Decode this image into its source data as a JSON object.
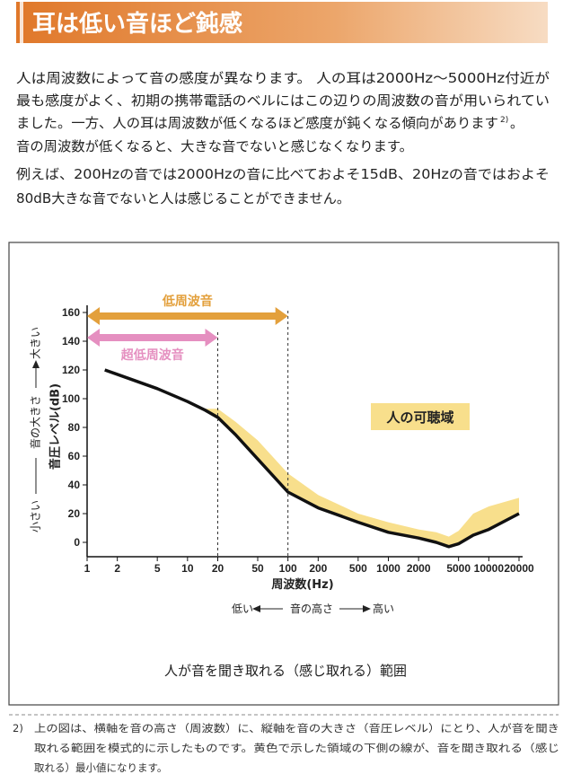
{
  "header": {
    "title": "耳は低い音ほど鈍感"
  },
  "paragraph": [
    {
      "text": "人は周波数によって音の感度が異なります。 人の耳は2000Hz～5000Hz付近が"
    },
    {
      "text": "最も感度がよく、初期の携帯電話のベルにはこの辺りの周波数の音が用いられてい"
    },
    {
      "text": "ました。一方、人の耳は周波数が低くなるほど感度が鈍くなる傾向があります",
      "sup": "2)",
      "tail": "。"
    },
    {
      "text": "音の周波数が低くなると、大きな音でないと感じなくなります。"
    },
    {
      "text": "例えば、200Hzの音では2000Hzの音に比べておよそ15dB、20Hzの音ではおよそ"
    },
    {
      "text": "80dB大きな音でないと人は感じることができません。"
    }
  ],
  "chart_data": {
    "type": "line",
    "caption": "人が音を聞き取れる（感じ取れる）範囲",
    "x_label": "周波数(Hz)",
    "y_label": "音圧レベル(dB)",
    "xscale": "log",
    "xlim": [
      1,
      20000
    ],
    "xticks": [
      1,
      2,
      5,
      10,
      20,
      50,
      100,
      200,
      500,
      1000,
      2000,
      5000,
      10000,
      20000
    ],
    "ylim": [
      -10,
      165
    ],
    "yticks": [
      0,
      20,
      40,
      60,
      80,
      100,
      120,
      140,
      160
    ],
    "line": {
      "color": "#111111",
      "x": [
        1.5,
        5,
        10,
        15,
        20,
        30,
        50,
        100,
        200,
        500,
        1000,
        2000,
        3000,
        4000,
        5000,
        7000,
        10000,
        20000
      ],
      "values": [
        120,
        107,
        98,
        92,
        87,
        75,
        58,
        35,
        24,
        14,
        7,
        3,
        0,
        -3,
        -1,
        5,
        9,
        20
      ]
    },
    "band": {
      "color": "#f8df8c",
      "x": [
        15,
        20,
        30,
        50,
        100,
        200,
        500,
        1000,
        2000,
        3000,
        4000,
        5000,
        7000,
        10000,
        20000
      ],
      "lower": [
        92,
        87,
        75,
        58,
        35,
        24,
        14,
        7,
        3,
        0,
        -3,
        -1,
        5,
        9,
        20
      ],
      "upper": [
        93,
        93,
        84,
        71,
        48,
        33,
        20,
        14,
        9,
        7,
        4,
        8,
        20,
        25,
        31
      ]
    },
    "annotation": "人の可聴域",
    "ranges": [
      {
        "label": "低周波音",
        "from": 1,
        "to": 100,
        "color": "#e3a03c"
      },
      {
        "label": "超低周波音",
        "from": 1,
        "to": 20,
        "color": "#e58fc0"
      }
    ],
    "y_direction": {
      "low": "小さい",
      "mid": "音の大きさ",
      "high": "大きい"
    },
    "x_direction": {
      "low": "低い",
      "mid": "音の高さ",
      "high": "高い"
    }
  },
  "footnote": {
    "marker": "2)",
    "lines": [
      "上の図は、横軸を音の高さ（周波数）に、縦軸を音の大きさ（音圧レベル）にとり、人が音を聞き",
      "取れる範囲を模式的に示したものです。黄色で示した領域の下側の線が、音を聞き取れる（感じ",
      "取れる）最小値になります。"
    ]
  }
}
